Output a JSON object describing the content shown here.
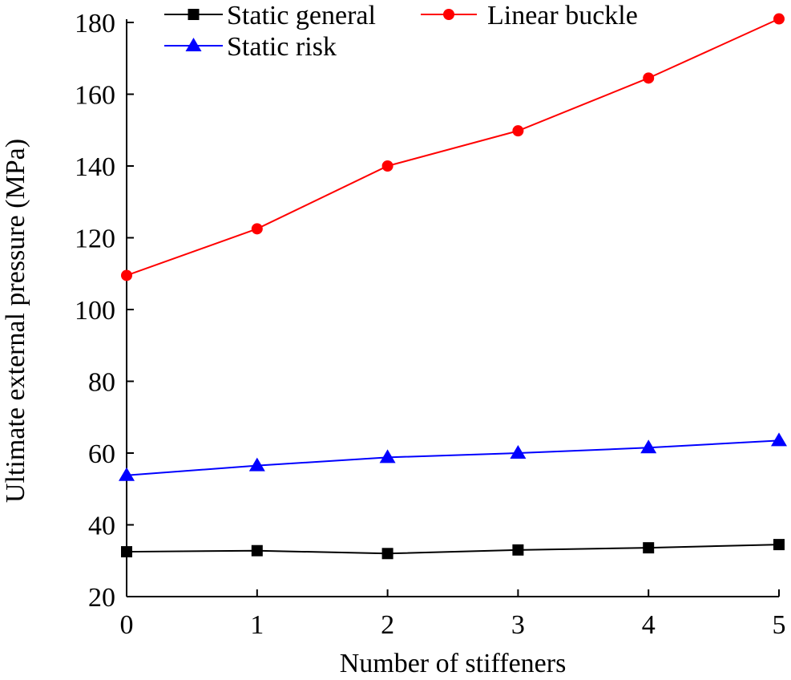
{
  "chart_data": {
    "type": "line",
    "title": "",
    "xlabel": "Number of stiffeners",
    "ylabel": "Ultimate external pressure (MPa)",
    "x": [
      0,
      1,
      2,
      3,
      4,
      5
    ],
    "xlim": [
      0,
      5
    ],
    "ylim": [
      20,
      180
    ],
    "xticks": [
      "0",
      "1",
      "2",
      "3",
      "4",
      "5"
    ],
    "yticks": [
      "20",
      "40",
      "60",
      "80",
      "100",
      "120",
      "140",
      "160",
      "180"
    ],
    "grid": false,
    "legend_position": "top",
    "series": [
      {
        "name": "Static general",
        "color": "#000000",
        "marker": "square",
        "values": [
          32.5,
          32.8,
          32.0,
          33.0,
          33.6,
          34.5
        ]
      },
      {
        "name": "Linear buckle",
        "color": "#ff0000",
        "marker": "circle",
        "values": [
          109.5,
          122.5,
          140.0,
          149.8,
          164.5,
          181.0
        ]
      },
      {
        "name": "Static risk",
        "color": "#0000ff",
        "marker": "triangle",
        "values": [
          53.8,
          56.5,
          58.8,
          60.0,
          61.5,
          63.5
        ]
      }
    ]
  }
}
